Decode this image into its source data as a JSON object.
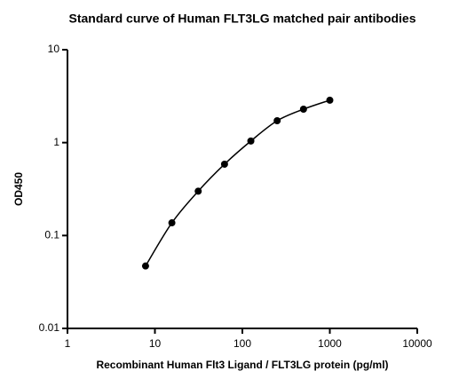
{
  "chart_data": {
    "type": "scatter",
    "title": "Standard curve of Human FLT3LG matched pair antibodies",
    "x_label": "Recombinant Human Flt3 Ligand / FLT3LG protein (pg/ml)",
    "y_label": "OD450",
    "x": [
      7.8125,
      15.625,
      31.25,
      62.5,
      125,
      250,
      500,
      1000
    ],
    "values": [
      0.047,
      0.137,
      0.3,
      0.586,
      1.04,
      1.72,
      2.29,
      2.86
    ],
    "color": "#000000",
    "fit_curve": true,
    "log_x": true,
    "log_y": true,
    "xlim": [
      1,
      10000
    ],
    "xticks": [
      1,
      10,
      100,
      1000,
      10000
    ],
    "ylim": [
      0.01,
      10
    ],
    "yticks": [
      0.01,
      0.1,
      1,
      10
    ]
  }
}
